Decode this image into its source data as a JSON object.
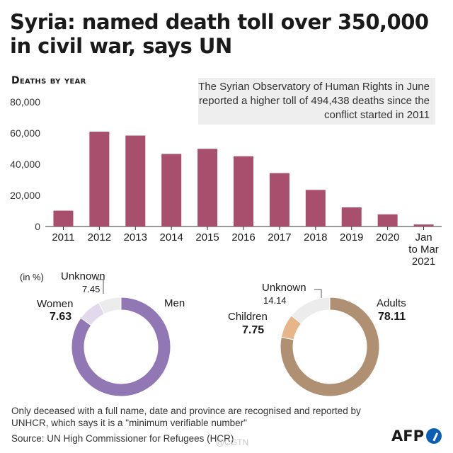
{
  "title": "Syria: named death toll over 350,000 in civil war, says UN",
  "section_head": "Deaths by year",
  "note": "The Syrian Observatory of Human Rights in June reported a higher toll of 494,438 deaths since the conflict started in 2011",
  "chart_data": [
    {
      "type": "bar",
      "title": "Deaths by year",
      "categories": [
        "2011",
        "2012",
        "2013",
        "2014",
        "2015",
        "2016",
        "2017",
        "2018",
        "2019",
        "2020",
        "Jan to Mar 2021"
      ],
      "category_lines": [
        [
          "2011"
        ],
        [
          "2012"
        ],
        [
          "2013"
        ],
        [
          "2014"
        ],
        [
          "2015"
        ],
        [
          "2016"
        ],
        [
          "2017"
        ],
        [
          "2018"
        ],
        [
          "2019"
        ],
        [
          "2020"
        ],
        [
          "Jan",
          "to Mar",
          "2021"
        ]
      ],
      "values": [
        10200,
        60900,
        58400,
        46600,
        49900,
        45100,
        34300,
        23500,
        12300,
        7800,
        1300
      ],
      "ylim": [
        0,
        80000
      ],
      "yticks": [
        0,
        20000,
        40000,
        60000,
        80000
      ],
      "ytick_labels": [
        "0",
        "20,000",
        "40,000",
        "60,000",
        "80,000"
      ],
      "color": "#a94f6e",
      "grid": false
    },
    {
      "type": "pie",
      "unit_label": "(in %)",
      "labels": [
        "Men",
        "Women",
        "Unknown"
      ],
      "display_values": [
        "",
        "7.63",
        "7.45"
      ],
      "values": [
        84.92,
        7.63,
        7.45
      ],
      "colors": [
        "#9177b4",
        "#e2d9ec",
        "#ececec"
      ]
    },
    {
      "type": "pie",
      "labels": [
        "Adults",
        "Children",
        "Unknown"
      ],
      "display_values": [
        "78.11",
        "7.75",
        "14.14"
      ],
      "values": [
        78.11,
        7.75,
        14.14
      ],
      "colors": [
        "#b09072",
        "#e7b58a",
        "#ececec"
      ]
    }
  ],
  "footnote": "Only deceased with a full name, date and province are recognised and reported by UNHCR, which says it is a \"minimum verifiable number\"",
  "source": "Source: UN High Commissioner for Refugees (HCR)",
  "watermark": "@CGTN",
  "logo_text": "AFP"
}
